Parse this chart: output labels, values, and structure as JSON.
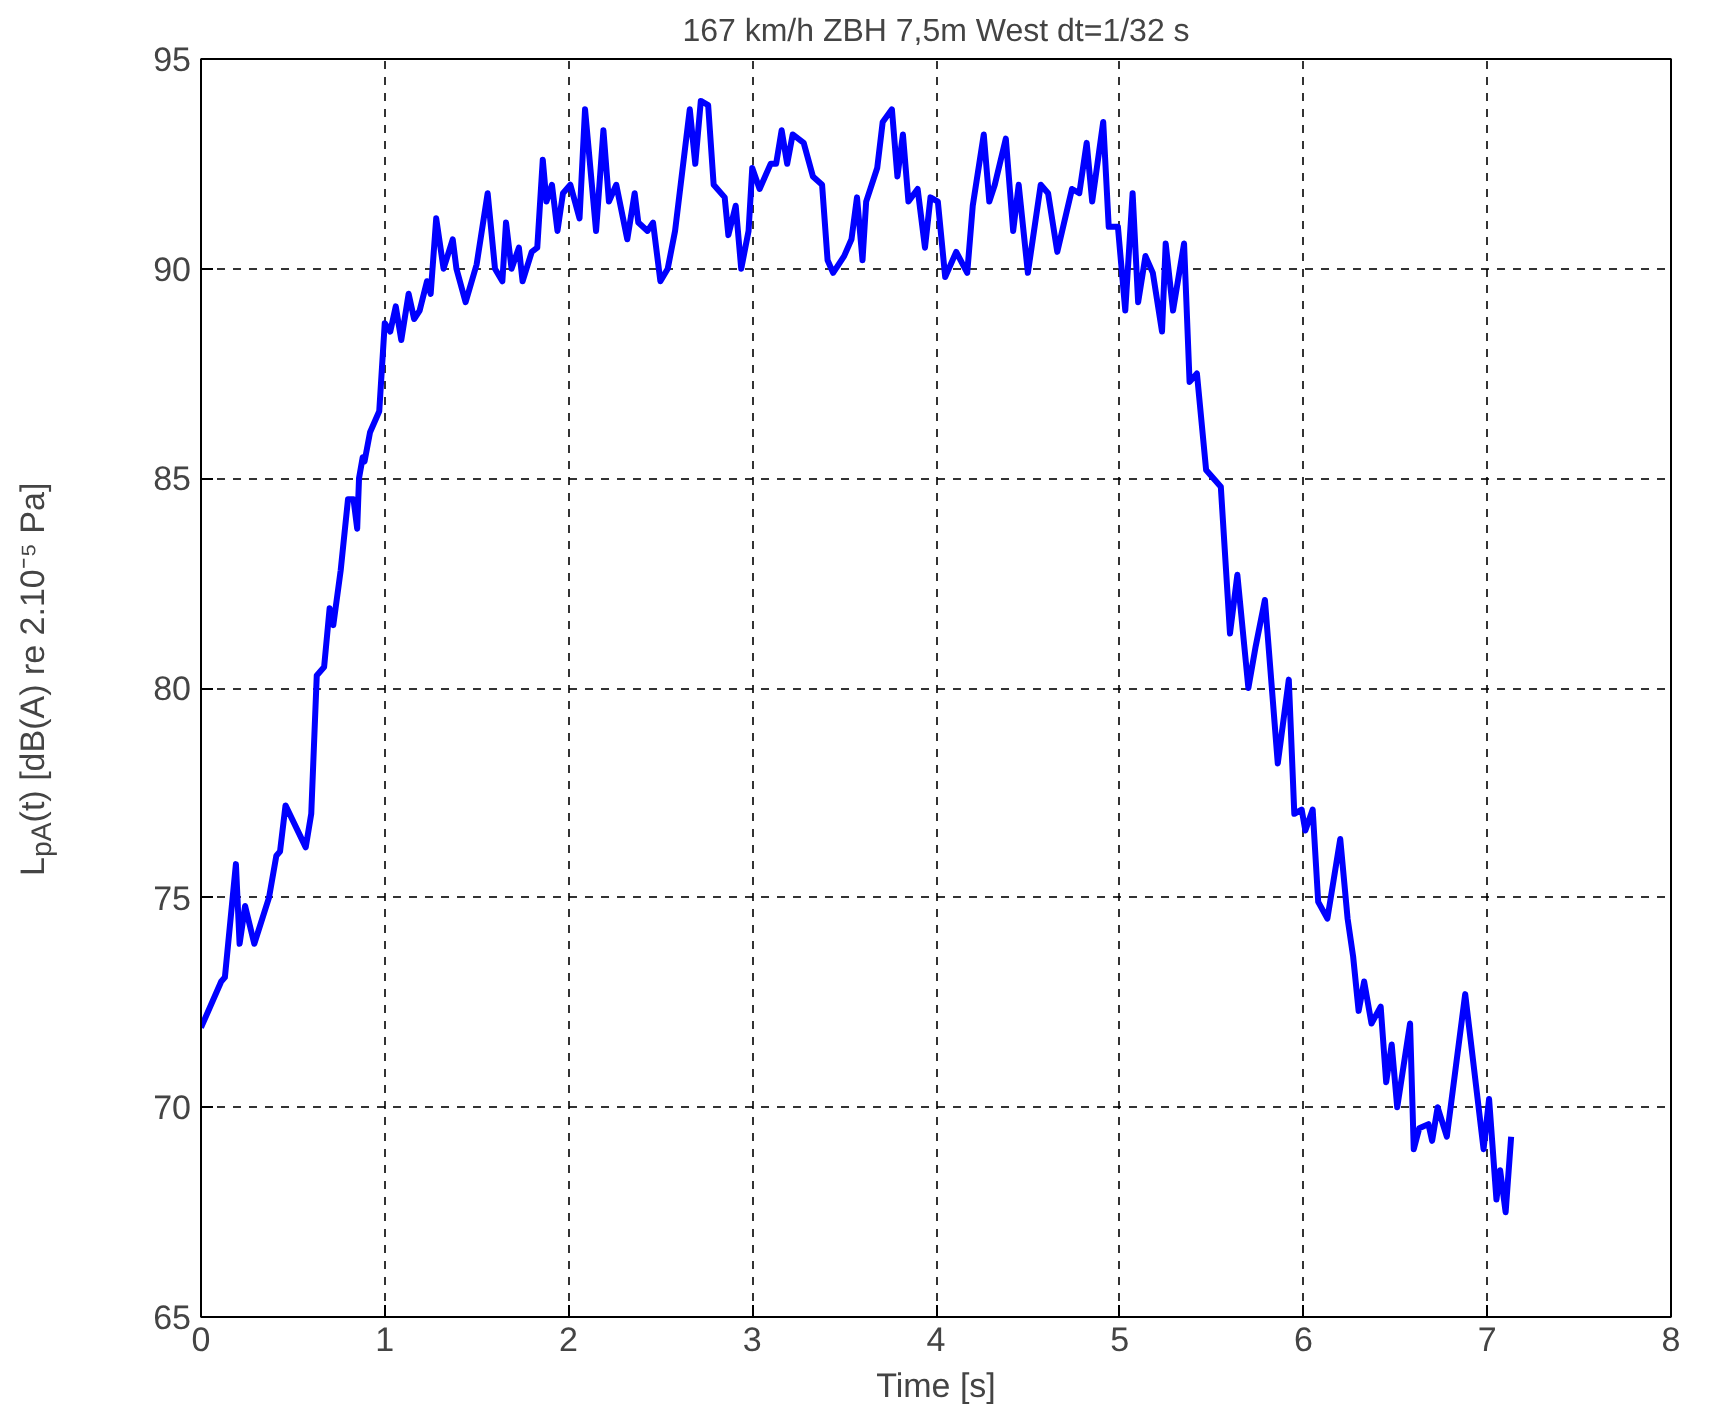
{
  "chart_data": {
    "type": "line",
    "title": "167 km/h ZBH 7,5m West dt=1/32 s",
    "xlabel": "Time [s]",
    "ylabel": "L$_{pA}$(t) [dB(A) re 2.10⁻⁵ Pa]",
    "x": [
      0,
      0.11,
      0.13,
      0.19,
      0.21,
      0.24,
      0.29,
      0.37,
      0.41,
      0.43,
      0.46,
      0.57,
      0.6,
      0.63,
      0.67,
      0.7,
      0.72,
      0.76,
      0.8,
      0.83,
      0.85,
      0.86,
      0.88,
      0.89,
      0.92,
      0.97,
      1.0,
      1.03,
      1.06,
      1.09,
      1.13,
      1.16,
      1.19,
      1.23,
      1.25,
      1.28,
      1.32,
      1.37,
      1.39,
      1.44,
      1.5,
      1.56,
      1.6,
      1.64,
      1.66,
      1.69,
      1.73,
      1.75,
      1.8,
      1.83,
      1.86,
      1.88,
      1.91,
      1.94,
      1.97,
      2.01,
      2.06,
      2.09,
      2.15,
      2.19,
      2.22,
      2.26,
      2.32,
      2.36,
      2.38,
      2.43,
      2.46,
      2.5,
      2.54,
      2.58,
      2.66,
      2.69,
      2.72,
      2.76,
      2.79,
      2.85,
      2.87,
      2.91,
      2.94,
      2.98,
      3.0,
      3.04,
      3.1,
      3.13,
      3.16,
      3.19,
      3.22,
      3.28,
      3.33,
      3.38,
      3.41,
      3.44,
      3.5,
      3.54,
      3.57,
      3.6,
      3.62,
      3.68,
      3.71,
      3.76,
      3.79,
      3.82,
      3.85,
      3.9,
      3.94,
      3.97,
      4.01,
      4.05,
      4.11,
      4.17,
      4.2,
      4.26,
      4.29,
      4.32,
      4.38,
      4.42,
      4.45,
      4.5,
      4.57,
      4.61,
      4.66,
      4.74,
      4.78,
      4.82,
      4.85,
      4.91,
      4.94,
      4.99,
      5.03,
      5.07,
      5.1,
      5.14,
      5.18,
      5.23,
      5.25,
      5.29,
      5.35,
      5.38,
      5.42,
      5.47,
      5.55,
      5.6,
      5.64,
      5.7,
      5.74,
      5.79,
      5.86,
      5.92,
      5.95,
      5.99,
      6.01,
      6.05,
      6.08,
      6.13,
      6.2,
      6.24,
      6.27,
      6.3,
      6.33,
      6.37,
      6.42,
      6.45,
      6.48,
      6.51,
      6.58,
      6.6,
      6.63,
      6.68,
      6.7,
      6.73,
      6.78,
      6.83,
      6.88,
      6.98,
      7.01,
      7.05,
      7.07,
      7.1,
      7.13
    ],
    "series": [
      {
        "color": "#0000ff",
        "values": [
          71.9,
          73.0,
          73.1,
          75.8,
          73.9,
          74.8,
          73.9,
          75.0,
          76.0,
          76.1,
          77.2,
          76.2,
          77.0,
          80.3,
          80.5,
          81.9,
          81.5,
          82.8,
          84.5,
          84.5,
          83.8,
          85.0,
          85.5,
          85.4,
          86.1,
          86.6,
          88.7,
          88.5,
          89.1,
          88.3,
          89.4,
          88.8,
          89.0,
          89.7,
          89.4,
          91.2,
          90.0,
          90.7,
          90.0,
          89.2,
          90.1,
          91.8,
          90.0,
          89.7,
          91.1,
          90.0,
          90.5,
          89.7,
          90.4,
          90.5,
          92.6,
          91.6,
          92.0,
          90.9,
          91.8,
          92.0,
          91.2,
          93.8,
          90.9,
          93.3,
          91.6,
          92.0,
          90.7,
          91.8,
          91.1,
          90.9,
          91.1,
          89.7,
          90.0,
          90.9,
          93.8,
          92.5,
          94.0,
          93.9,
          92.0,
          91.7,
          90.8,
          91.5,
          90.0,
          90.9,
          92.4,
          91.9,
          92.5,
          92.5,
          93.3,
          92.5,
          93.2,
          93.0,
          92.2,
          92.0,
          90.2,
          89.9,
          90.3,
          90.7,
          91.7,
          90.2,
          91.6,
          92.4,
          93.5,
          93.8,
          92.2,
          93.2,
          91.6,
          91.9,
          90.5,
          91.7,
          91.6,
          89.8,
          90.4,
          89.9,
          91.5,
          93.2,
          91.6,
          92.0,
          93.1,
          90.9,
          92.0,
          89.9,
          92.0,
          91.8,
          90.4,
          91.9,
          91.8,
          93.0,
          91.6,
          93.5,
          91.0,
          91.0,
          89.0,
          91.8,
          89.2,
          90.3,
          89.9,
          88.5,
          90.6,
          89.0,
          90.6,
          87.3,
          87.5,
          85.2,
          84.8,
          81.3,
          82.7,
          80.0,
          81.0,
          82.1,
          78.2,
          80.2,
          77.0,
          77.1,
          76.6,
          77.1,
          74.9,
          74.5,
          76.4,
          74.5,
          73.6,
          72.3,
          73.0,
          72.0,
          72.4,
          70.6,
          71.5,
          70.0,
          72.0,
          69.0,
          69.5,
          69.6,
          69.2,
          70.0,
          69.3,
          71.0,
          72.7,
          69.0,
          70.2,
          67.8,
          68.5,
          67.5,
          69.3
        ]
      }
    ],
    "xlim": [
      0,
      8
    ],
    "ylim": [
      65,
      95
    ],
    "xticks": [
      0,
      1,
      2,
      3,
      4,
      5,
      6,
      7,
      8
    ],
    "yticks": [
      65,
      70,
      75,
      80,
      85,
      90,
      95
    ],
    "grid": true
  }
}
